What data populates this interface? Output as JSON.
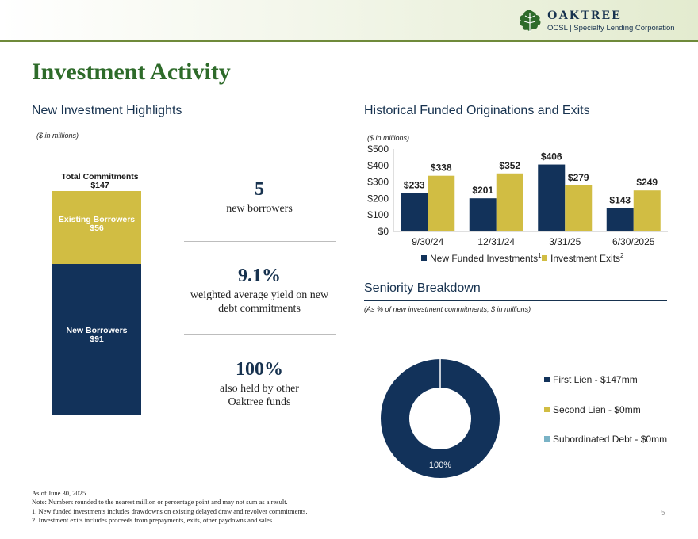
{
  "header": {
    "logo_name": "OAKTREE",
    "logo_subtitle": "OCSL | Specialty Lending Corporation",
    "accent_green": "#6f8a3a"
  },
  "page": {
    "title": "Investment Activity",
    "page_number": "5"
  },
  "colors": {
    "navy": "#12325a",
    "gold": "#d1bd43",
    "teal": "#7ab3c6",
    "title_green": "#2e6b2a"
  },
  "highlights": {
    "section_title": "New Investment Highlights",
    "units_note": "($ in millions)",
    "stack": {
      "total_label": "Total Commitments",
      "total_value": "$147",
      "total": 147,
      "segments": [
        {
          "name": "Existing Borrowers",
          "value_label": "$56",
          "value": 56,
          "color": "#d1bd43"
        },
        {
          "name": "New Borrowers",
          "value_label": "$91",
          "value": 91,
          "color": "#12325a"
        }
      ]
    },
    "kpis": [
      {
        "value": "5",
        "desc_line1": "new borrowers",
        "desc_line2": ""
      },
      {
        "value": "9.1%",
        "desc_line1": "weighted average yield on new",
        "desc_line2": "debt commitments"
      },
      {
        "value": "100%",
        "desc_line1": "also held by other",
        "desc_line2": "Oaktree funds"
      }
    ]
  },
  "originations": {
    "section_title": "Historical Funded Originations and Exits",
    "units_note": "($ in millions)",
    "legend": [
      {
        "label": "New Funded Investments",
        "sup": "1"
      },
      {
        "label": "Investment Exits",
        "sup": "2"
      }
    ]
  },
  "seniority": {
    "section_title": "Seniority Breakdown",
    "units_note": "(As % of new investment commitments; $ in millions)",
    "center_label": "100%"
  },
  "chart_data": [
    {
      "type": "bar",
      "title": "Historical Funded Originations and Exits",
      "categories": [
        "9/30/24",
        "12/31/24",
        "3/31/25",
        "6/30/2025"
      ],
      "series": [
        {
          "name": "New Funded Investments",
          "values": [
            233,
            201,
            406,
            143
          ],
          "labels": [
            "$233",
            "$201",
            "$406",
            "$143"
          ],
          "color": "#12325a"
        },
        {
          "name": "Investment Exits",
          "values": [
            338,
            352,
            279,
            249
          ],
          "labels": [
            "$338",
            "$352",
            "$279",
            "$249"
          ],
          "color": "#d1bd43"
        }
      ],
      "ylim": [
        0,
        500
      ],
      "yticks": [
        0,
        100,
        200,
        300,
        400,
        500
      ],
      "ytick_labels": [
        "$0",
        "$100",
        "$200",
        "$300",
        "$400",
        "$500"
      ],
      "grid": false,
      "legend": "bottom"
    },
    {
      "type": "pie",
      "title": "Seniority Breakdown",
      "style": "donut",
      "slices": [
        {
          "label": "First Lien - $147mm",
          "value": 100,
          "color": "#12325a"
        },
        {
          "label": "Second Lien - $0mm",
          "value": 0,
          "color": "#d1bd43"
        },
        {
          "label": "Subordinated Debt - $0mm",
          "value": 0,
          "color": "#7ab3c6"
        }
      ],
      "legend": "right"
    }
  ],
  "footnotes": {
    "as_of": "As of June 30, 2025",
    "note": "Note: Numbers rounded to the nearest million or percentage point and may not sum as a result.",
    "items": [
      "1.  New funded investments includes drawdowns on existing delayed draw and revolver commitments.",
      "2.  Investment exits includes proceeds from prepayments, exits, other paydowns and sales."
    ]
  }
}
